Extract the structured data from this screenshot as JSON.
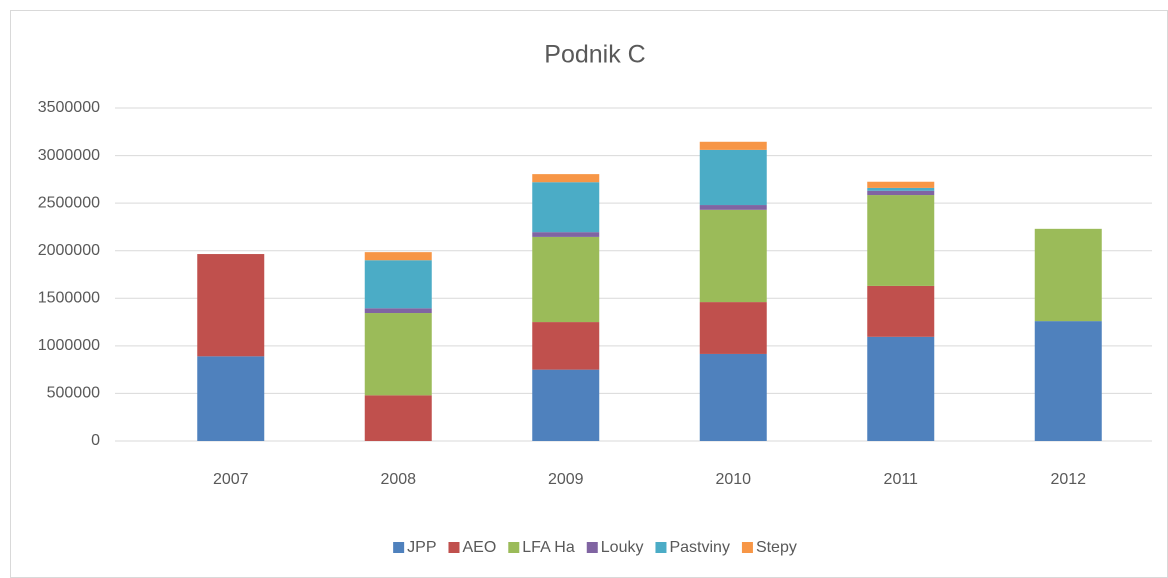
{
  "chart_data": {
    "type": "stacked-bar",
    "title": "Podnik C",
    "categories": [
      "2007",
      "2008",
      "2009",
      "2010",
      "2011",
      "2012"
    ],
    "series": [
      {
        "name": "JPP",
        "color": "#4f81bd",
        "values": [
          890000,
          0,
          750000,
          915000,
          1095000,
          1260000
        ]
      },
      {
        "name": "AEO",
        "color": "#c0504d",
        "values": [
          1075000,
          480000,
          500000,
          545000,
          535000,
          0
        ]
      },
      {
        "name": "LFA Ha",
        "color": "#9bbb59",
        "values": [
          0,
          865000,
          895000,
          970000,
          955000,
          970000
        ]
      },
      {
        "name": "Louky",
        "color": "#8064a2",
        "values": [
          0,
          50000,
          50000,
          50000,
          45000,
          0
        ]
      },
      {
        "name": "Pastviny",
        "color": "#4bacc6",
        "values": [
          0,
          505000,
          525000,
          580000,
          30000,
          0
        ]
      },
      {
        "name": "Stepy",
        "color": "#f79646",
        "values": [
          0,
          85000,
          85000,
          85000,
          65000,
          0
        ]
      }
    ],
    "ylim": [
      0,
      3500000
    ],
    "yticks": [
      0,
      500000,
      1000000,
      1500000,
      2000000,
      2500000,
      3000000,
      3500000
    ],
    "grid": true,
    "legend": "bottom"
  }
}
